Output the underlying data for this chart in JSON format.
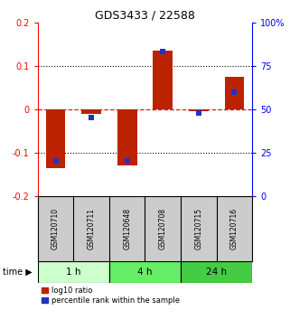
{
  "title": "GDS3433 / 22588",
  "samples": [
    "GSM120710",
    "GSM120711",
    "GSM120648",
    "GSM120708",
    "GSM120715",
    "GSM120716"
  ],
  "log10_ratio": [
    -0.135,
    -0.01,
    -0.13,
    0.135,
    -0.005,
    0.075
  ],
  "percentile_rank": [
    20,
    45,
    20,
    83,
    48,
    60
  ],
  "groups": [
    {
      "label": "1 h",
      "samples": [
        0,
        1
      ],
      "color": "#ccffcc"
    },
    {
      "label": "4 h",
      "samples": [
        2,
        3
      ],
      "color": "#66ee66"
    },
    {
      "label": "24 h",
      "samples": [
        4,
        5
      ],
      "color": "#44cc44"
    }
  ],
  "ylim_left": [
    -0.2,
    0.2
  ],
  "ylim_right": [
    0,
    100
  ],
  "yticks_left": [
    -0.2,
    -0.1,
    0.0,
    0.1,
    0.2
  ],
  "yticks_right": [
    0,
    25,
    50,
    75,
    100
  ],
  "ytick_labels_right": [
    "0",
    "25",
    "50",
    "75",
    "100%"
  ],
  "bar_color_red": "#bb2200",
  "bar_color_blue": "#2233bb",
  "zero_line_color": "#cc2222",
  "background_color": "#ffffff",
  "sample_box_color": "#cccccc",
  "bar_width": 0.55,
  "figwidth": 3.21,
  "figheight": 3.54,
  "dpi": 100
}
